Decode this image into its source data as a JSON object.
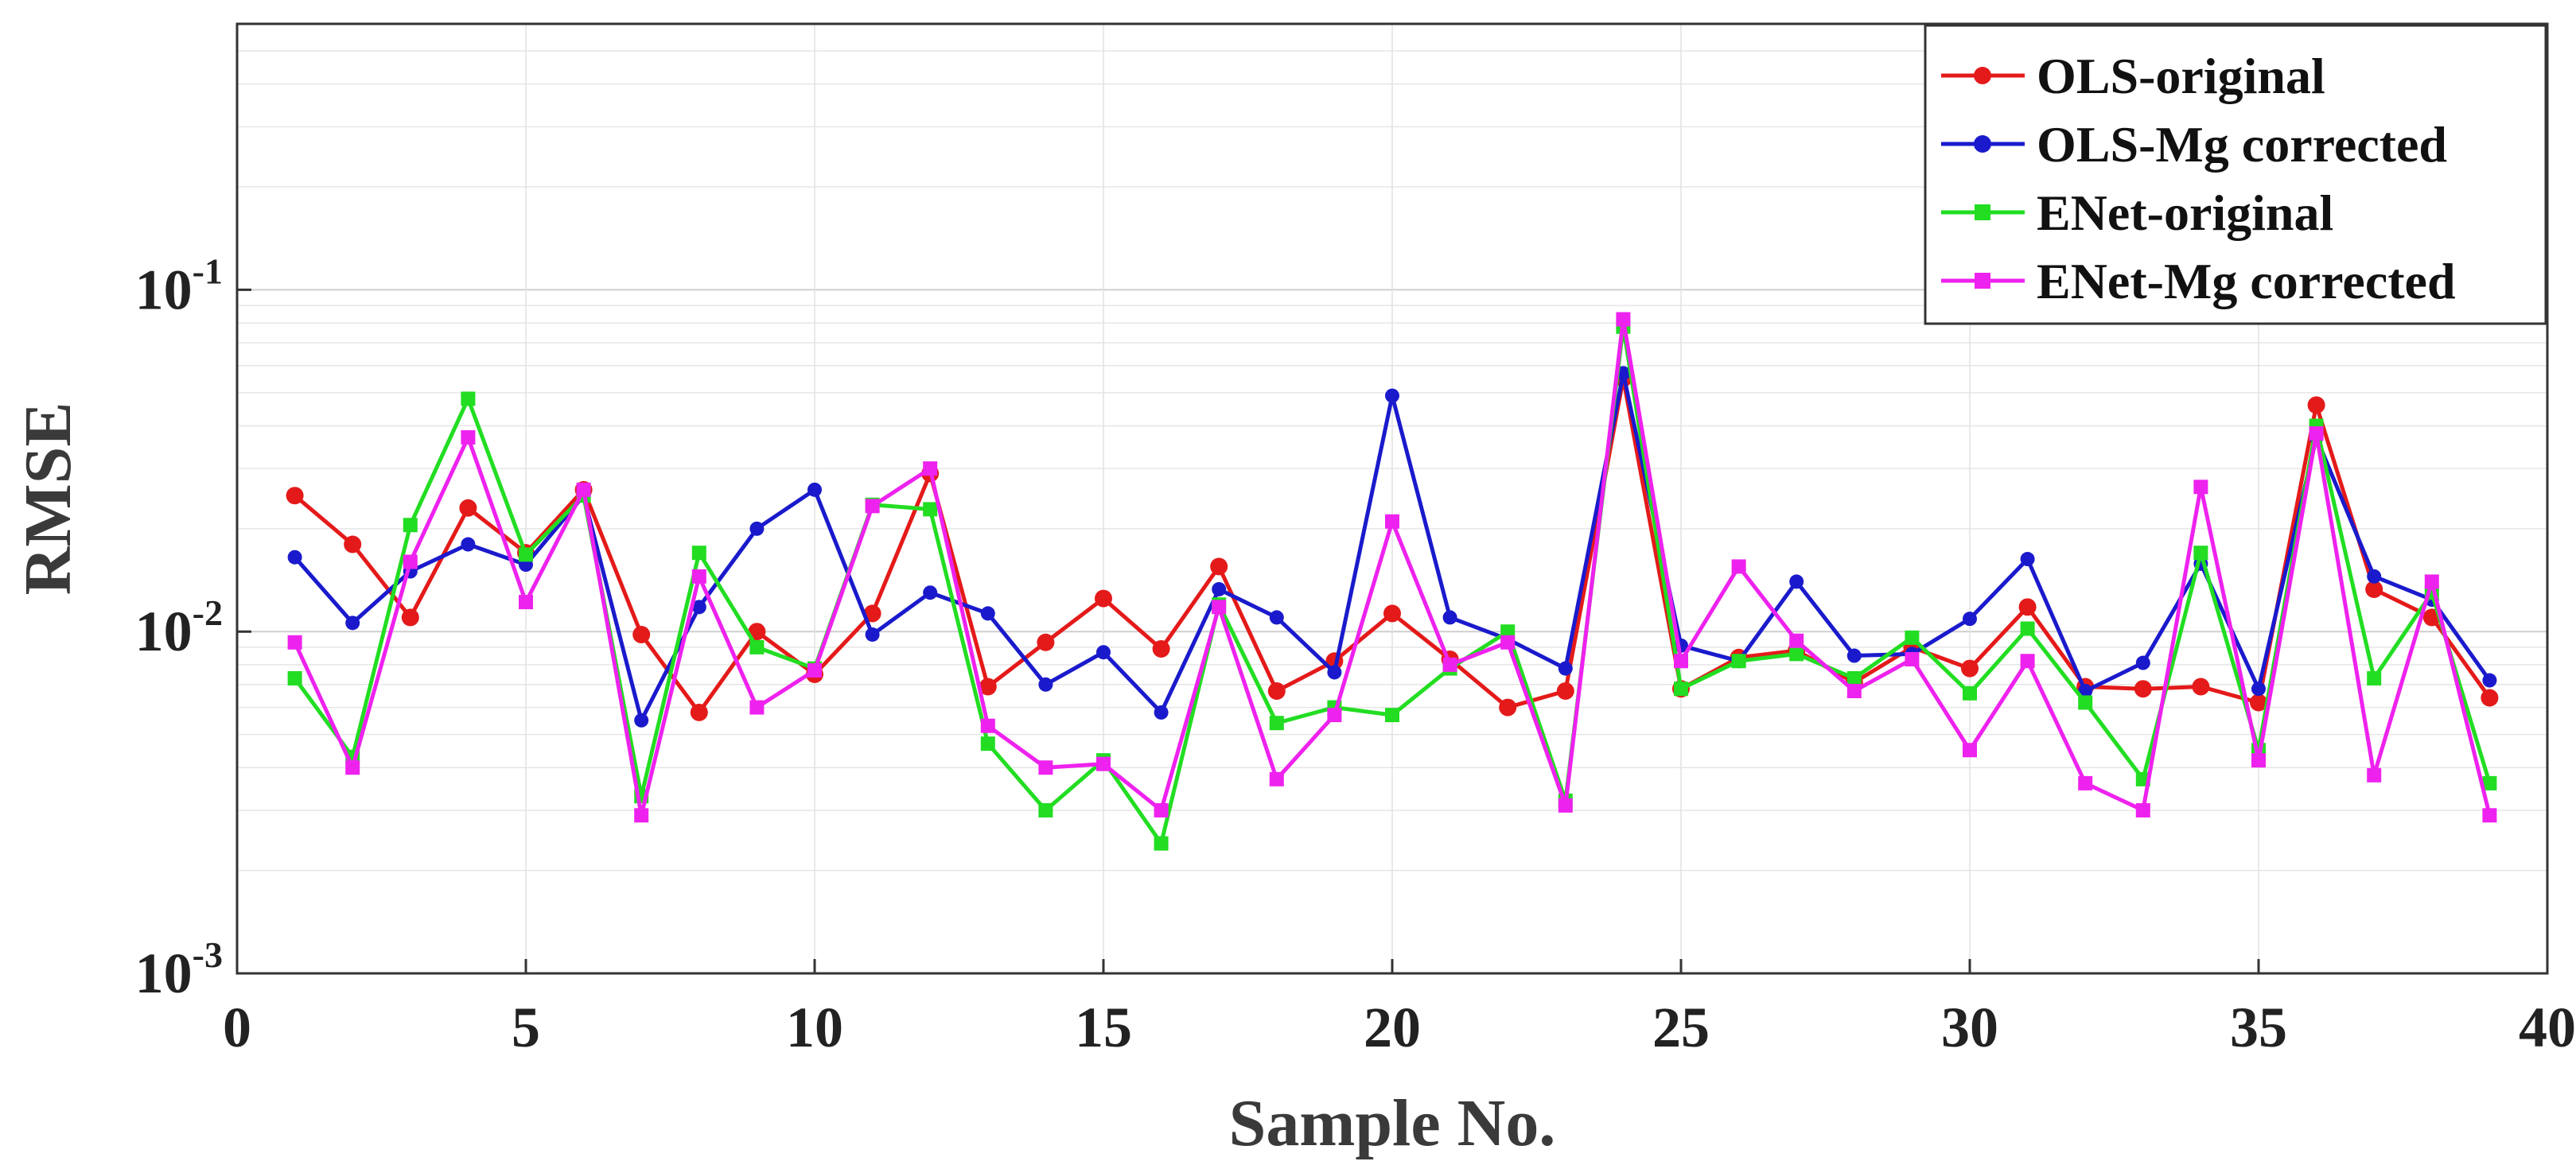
{
  "chart_data": {
    "type": "line",
    "title": "",
    "xlabel": "Sample No.",
    "ylabel": "RMSE",
    "xlim": [
      0,
      40
    ],
    "ylim": [
      0.001,
      0.6
    ],
    "yscale": "log",
    "grid": true,
    "legend_position": "top-right",
    "x_ticks": [
      0,
      5,
      10,
      15,
      20,
      25,
      30,
      35,
      40
    ],
    "x_tick_labels": [
      "0",
      "5",
      "10",
      "15",
      "20",
      "25",
      "30",
      "35",
      "40"
    ],
    "y_ticks": [
      {
        "value": 0.001,
        "base": "10",
        "exp": "-3"
      },
      {
        "value": 0.01,
        "base": "10",
        "exp": "-2"
      },
      {
        "value": 0.1,
        "base": "10",
        "exp": "-1"
      }
    ],
    "x": [
      1,
      2,
      3,
      4,
      5,
      6,
      7,
      8,
      9,
      10,
      11,
      12,
      13,
      14,
      15,
      16,
      17,
      18,
      19,
      20,
      21,
      22,
      23,
      24,
      25,
      26,
      27,
      28,
      29,
      30,
      31,
      32,
      33,
      34,
      35,
      36,
      37,
      38,
      39
    ],
    "series": [
      {
        "name": "OLS-original",
        "color": "#e41a1a",
        "marker": "circle",
        "values": [
          0.025,
          0.018,
          0.011,
          0.023,
          0.017,
          0.026,
          0.0098,
          0.0058,
          0.01,
          0.0075,
          0.0113,
          0.029,
          0.0069,
          0.0093,
          0.0125,
          0.0089,
          0.0155,
          0.0067,
          0.0082,
          0.0113,
          0.0083,
          0.006,
          0.0067,
          0.055,
          0.0068,
          0.0084,
          0.0088,
          0.0071,
          0.009,
          0.0078,
          0.0118,
          0.0069,
          0.0068,
          0.0069,
          0.0062,
          0.046,
          0.0133,
          0.011,
          0.0064
        ]
      },
      {
        "name": "OLS-Mg corrected",
        "color": "#1a1acc",
        "marker": "circle",
        "values": [
          0.0165,
          0.0106,
          0.015,
          0.018,
          0.0157,
          0.025,
          0.0055,
          0.0118,
          0.02,
          0.026,
          0.0098,
          0.013,
          0.0113,
          0.007,
          0.0087,
          0.0058,
          0.0133,
          0.011,
          0.0076,
          0.049,
          0.011,
          0.0095,
          0.0078,
          0.057,
          0.0091,
          0.0082,
          0.014,
          0.0085,
          0.0086,
          0.0109,
          0.0163,
          0.0067,
          0.0081,
          0.0158,
          0.0068,
          0.037,
          0.0145,
          0.0124,
          0.0072
        ]
      },
      {
        "name": "ENet-original",
        "color": "#22dd22",
        "marker": "square",
        "values": [
          0.0073,
          0.0043,
          0.0205,
          0.048,
          0.0168,
          0.025,
          0.0033,
          0.017,
          0.009,
          0.0078,
          0.0235,
          0.0228,
          0.0047,
          0.003,
          0.0042,
          0.0024,
          0.012,
          0.0054,
          0.006,
          0.0057,
          0.0078,
          0.01,
          0.0032,
          0.078,
          0.0068,
          0.0082,
          0.0086,
          0.0073,
          0.0096,
          0.0066,
          0.0102,
          0.0062,
          0.0037,
          0.017,
          0.0045,
          0.04,
          0.0073,
          0.013,
          0.0036
        ]
      },
      {
        "name": "ENet-Mg corrected",
        "color": "#ee22ee",
        "marker": "square",
        "values": [
          0.0093,
          0.004,
          0.016,
          0.037,
          0.0122,
          0.026,
          0.0029,
          0.0145,
          0.006,
          0.0077,
          0.0233,
          0.03,
          0.0053,
          0.004,
          0.0041,
          0.003,
          0.0118,
          0.0037,
          0.0057,
          0.021,
          0.008,
          0.0093,
          0.0031,
          0.082,
          0.0082,
          0.0155,
          0.0094,
          0.0067,
          0.0083,
          0.0045,
          0.0082,
          0.0036,
          0.003,
          0.0265,
          0.0042,
          0.038,
          0.0038,
          0.014,
          0.0029
        ]
      }
    ]
  }
}
